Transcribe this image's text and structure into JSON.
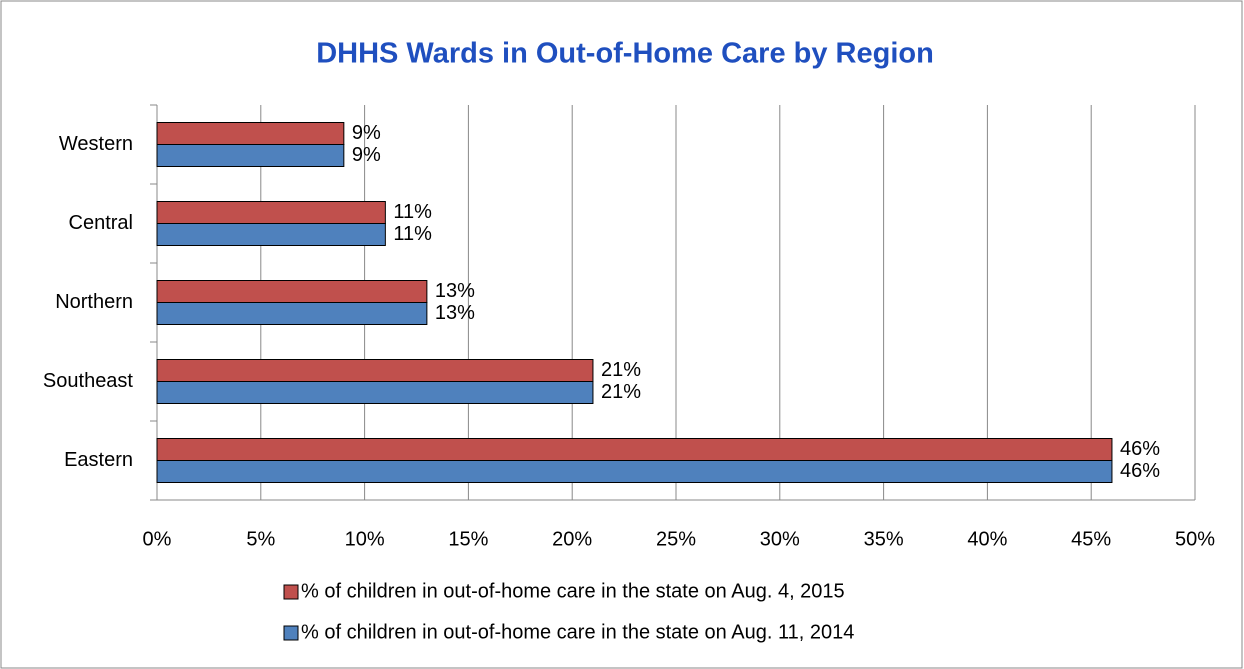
{
  "chart_data": {
    "type": "hbar",
    "title": "DHHS Wards in Out-of-Home Care by Region",
    "categories": [
      "Eastern",
      "Southeast",
      "Northern",
      "Central",
      "Western"
    ],
    "series": [
      {
        "name": "% of children in out-of-home care in the state on Aug. 4, 2015",
        "color": "#c0504d",
        "values": [
          46,
          21,
          13,
          11,
          9
        ],
        "value_labels": [
          "46%",
          "21%",
          "13%",
          "11%",
          "9%"
        ]
      },
      {
        "name": "% of children in out-of-home care in the state on Aug. 11, 2014",
        "color": "#4f81bd",
        "values": [
          46,
          21,
          13,
          11,
          9
        ],
        "value_labels": [
          "46%",
          "21%",
          "13%",
          "11%",
          "9%"
        ]
      }
    ],
    "xlim": [
      0,
      50
    ],
    "xticks": [
      {
        "value": 0,
        "label": "0%"
      },
      {
        "value": 5,
        "label": "5%"
      },
      {
        "value": 10,
        "label": "10%"
      },
      {
        "value": 15,
        "label": "15%"
      },
      {
        "value": 20,
        "label": "20%"
      },
      {
        "value": 25,
        "label": "25%"
      },
      {
        "value": 30,
        "label": "30%"
      },
      {
        "value": 35,
        "label": "35%"
      },
      {
        "value": 40,
        "label": "40%"
      },
      {
        "value": 45,
        "label": "45%"
      },
      {
        "value": 50,
        "label": "50%"
      }
    ],
    "grid": true,
    "legend": "bottom"
  }
}
